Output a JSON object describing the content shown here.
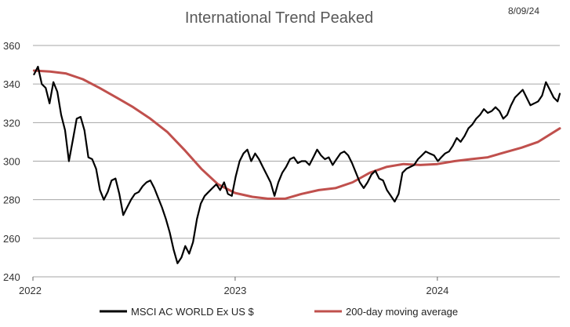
{
  "chart_data": {
    "type": "line",
    "title": "International Trend Peaked",
    "date_stamp": "8/09/24",
    "xlabel": "",
    "ylabel": "",
    "ylim": [
      240,
      360
    ],
    "y_ticks": [
      "240",
      "260",
      "280",
      "300",
      "320",
      "340",
      "360"
    ],
    "xlim": [
      "2022-01-01",
      "2024-08-09"
    ],
    "x_ticks": [
      "2022",
      "2023",
      "2024"
    ],
    "grid": "horizontal",
    "legend_position": "bottom",
    "series": [
      {
        "name": "MSCI AC WORLD Ex US $",
        "color": "#000000",
        "x": [
          "2022-01-03",
          "2022-01-10",
          "2022-01-17",
          "2022-01-24",
          "2022-01-31",
          "2022-02-07",
          "2022-02-14",
          "2022-02-21",
          "2022-02-28",
          "2022-03-07",
          "2022-03-14",
          "2022-03-21",
          "2022-03-28",
          "2022-04-04",
          "2022-04-11",
          "2022-04-18",
          "2022-04-25",
          "2022-05-02",
          "2022-05-09",
          "2022-05-16",
          "2022-05-23",
          "2022-05-30",
          "2022-06-06",
          "2022-06-13",
          "2022-06-20",
          "2022-06-27",
          "2022-07-04",
          "2022-07-11",
          "2022-07-18",
          "2022-07-25",
          "2022-08-01",
          "2022-08-08",
          "2022-08-15",
          "2022-08-22",
          "2022-08-29",
          "2022-09-05",
          "2022-09-12",
          "2022-09-19",
          "2022-09-26",
          "2022-10-03",
          "2022-10-10",
          "2022-10-17",
          "2022-10-24",
          "2022-10-31",
          "2022-11-07",
          "2022-11-14",
          "2022-11-21",
          "2022-11-28",
          "2022-12-05",
          "2022-12-12",
          "2022-12-19",
          "2022-12-26",
          "2023-01-02",
          "2023-01-09",
          "2023-01-16",
          "2023-01-23",
          "2023-01-30",
          "2023-02-06",
          "2023-02-13",
          "2023-02-20",
          "2023-02-27",
          "2023-03-06",
          "2023-03-13",
          "2023-03-20",
          "2023-03-27",
          "2023-04-03",
          "2023-04-10",
          "2023-04-17",
          "2023-04-24",
          "2023-05-01",
          "2023-05-08",
          "2023-05-15",
          "2023-05-22",
          "2023-05-29",
          "2023-06-05",
          "2023-06-12",
          "2023-06-19",
          "2023-06-26",
          "2023-07-03",
          "2023-07-10",
          "2023-07-17",
          "2023-07-24",
          "2023-07-31",
          "2023-08-07",
          "2023-08-14",
          "2023-08-21",
          "2023-08-28",
          "2023-09-04",
          "2023-09-11",
          "2023-09-18",
          "2023-09-25",
          "2023-10-02",
          "2023-10-09",
          "2023-10-16",
          "2023-10-23",
          "2023-10-30",
          "2023-11-06",
          "2023-11-13",
          "2023-11-20",
          "2023-11-27",
          "2023-12-04",
          "2023-12-11",
          "2023-12-18",
          "2023-12-26",
          "2024-01-02",
          "2024-01-08",
          "2024-01-15",
          "2024-01-22",
          "2024-01-29",
          "2024-02-05",
          "2024-02-12",
          "2024-02-19",
          "2024-02-26",
          "2024-03-04",
          "2024-03-11",
          "2024-03-18",
          "2024-03-25",
          "2024-04-01",
          "2024-04-08",
          "2024-04-15",
          "2024-04-22",
          "2024-04-29",
          "2024-05-06",
          "2024-05-13",
          "2024-05-20",
          "2024-05-27",
          "2024-06-03",
          "2024-06-10",
          "2024-06-17",
          "2024-06-24",
          "2024-07-01",
          "2024-07-08",
          "2024-07-15",
          "2024-07-22",
          "2024-07-29",
          "2024-08-05",
          "2024-08-09"
        ],
        "values": [
          345,
          349,
          340,
          338,
          330,
          341,
          336,
          324,
          316,
          300,
          311,
          322,
          323,
          316,
          302,
          301,
          296,
          285,
          280,
          284,
          290,
          291,
          283,
          272,
          276,
          280,
          283,
          284,
          287,
          289,
          290,
          286,
          281,
          276,
          270,
          263,
          254,
          247,
          250,
          256,
          252,
          258,
          270,
          278,
          282,
          284,
          286,
          288,
          285,
          289,
          283,
          282,
          292,
          300,
          304,
          306,
          300,
          304,
          301,
          297,
          293,
          289,
          282,
          289,
          294,
          297,
          301,
          302,
          299,
          300,
          300,
          298,
          302,
          306,
          303,
          301,
          302,
          298,
          301,
          304,
          305,
          303,
          299,
          294,
          289,
          286,
          289,
          293,
          295,
          291,
          290,
          285,
          282,
          279,
          283,
          294,
          296,
          297,
          298,
          301,
          303,
          305,
          304,
          303,
          300,
          302,
          304,
          305,
          308,
          312,
          310,
          313,
          317,
          319,
          322,
          324,
          327,
          325,
          326,
          328,
          326,
          322,
          324,
          329,
          333,
          335,
          337,
          333,
          329,
          330,
          331,
          334,
          341,
          337,
          333,
          331,
          335
        ]
      },
      {
        "name": "200-day moving average",
        "color": "#c0504d",
        "x": [
          "2022-01-03",
          "2022-02-01",
          "2022-03-01",
          "2022-04-01",
          "2022-05-01",
          "2022-06-01",
          "2022-07-01",
          "2022-08-01",
          "2022-09-01",
          "2022-10-01",
          "2022-11-01",
          "2022-12-01",
          "2023-01-01",
          "2023-02-01",
          "2023-03-01",
          "2023-04-01",
          "2023-05-01",
          "2023-06-01",
          "2023-07-01",
          "2023-08-01",
          "2023-09-01",
          "2023-10-01",
          "2023-11-01",
          "2023-12-01",
          "2024-01-01",
          "2024-02-01",
          "2024-03-01",
          "2024-04-01",
          "2024-05-01",
          "2024-06-01",
          "2024-07-01",
          "2024-08-09"
        ],
        "values": [
          347,
          346.5,
          345.5,
          342.5,
          338,
          333,
          328,
          322,
          315,
          306,
          296,
          288,
          283.5,
          281.5,
          280.5,
          280.5,
          283,
          285,
          286,
          289,
          294,
          297,
          298.5,
          298,
          298.5,
          300,
          301,
          302,
          304.5,
          307,
          310,
          317
        ]
      }
    ]
  }
}
